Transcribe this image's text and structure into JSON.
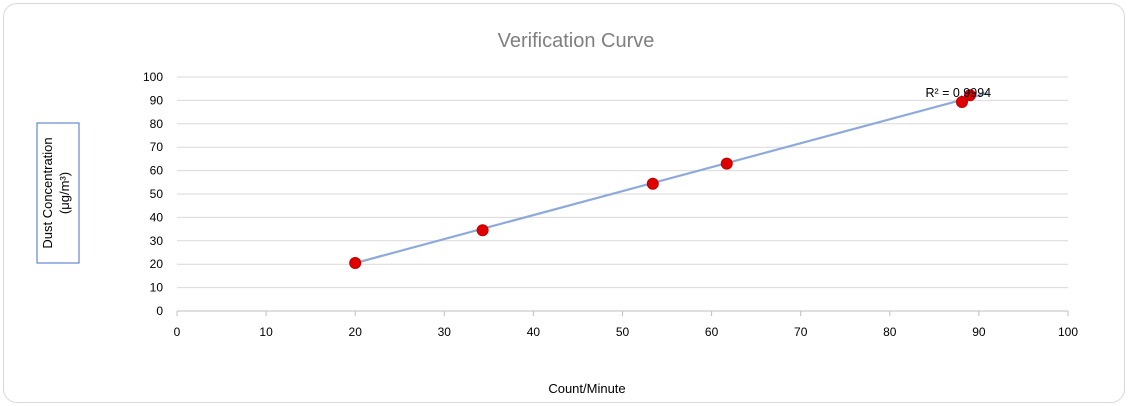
{
  "chart_data": {
    "type": "scatter",
    "title": "Verification Curve",
    "xlabel": "Count/Minute",
    "ylabel_lines": [
      "Dust Concentration",
      "(μg/m³)"
    ],
    "xlim": [
      0,
      100
    ],
    "ylim": [
      0,
      100
    ],
    "x_ticks": [
      0,
      10,
      20,
      30,
      40,
      50,
      60,
      70,
      80,
      90,
      100
    ],
    "y_ticks": [
      0,
      10,
      20,
      30,
      40,
      50,
      60,
      70,
      80,
      90,
      100
    ],
    "grid": "horizontal",
    "points": [
      {
        "x": 20,
        "y": 20.5
      },
      {
        "x": 34.3,
        "y": 34.5
      },
      {
        "x": 53.4,
        "y": 54.4
      },
      {
        "x": 61.7,
        "y": 63
      },
      {
        "x": 88.1,
        "y": 89.3
      },
      {
        "x": 89,
        "y": 92.2
      }
    ],
    "trendline": {
      "x_start": 20,
      "y_start": 20.5,
      "x_end": 91,
      "y_end": 93.2
    },
    "annotation": "R² = 0.9994",
    "annotation_anchor": {
      "x": 84,
      "y": 91.5
    },
    "colors": {
      "points": "#e00000",
      "trendline": "#8eaadb",
      "grid": "#d9d9d9"
    }
  }
}
